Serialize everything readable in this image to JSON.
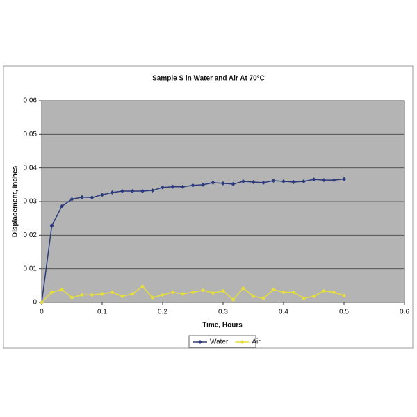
{
  "chart_data": {
    "type": "line",
    "title": "Sample S in Water and Air At 70°C",
    "x_label": "Time, Hours",
    "y_label": "Displacement, Inches",
    "x": [
      0,
      0.0167,
      0.0333,
      0.05,
      0.0667,
      0.0833,
      0.1,
      0.1167,
      0.1333,
      0.15,
      0.1667,
      0.1833,
      0.2,
      0.2167,
      0.2333,
      0.25,
      0.2667,
      0.2833,
      0.3,
      0.3167,
      0.3333,
      0.35,
      0.3667,
      0.3833,
      0.4,
      0.4167,
      0.4333,
      0.45,
      0.4667,
      0.4833,
      0.5
    ],
    "series": [
      {
        "name": "Water",
        "color": "#2b3a7c",
        "values": [
          0,
          0.0228,
          0.0286,
          0.0307,
          0.0313,
          0.0312,
          0.032,
          0.0327,
          0.0331,
          0.0331,
          0.0331,
          0.0333,
          0.0342,
          0.0344,
          0.0344,
          0.0348,
          0.035,
          0.0356,
          0.0354,
          0.0352,
          0.036,
          0.0358,
          0.0356,
          0.0362,
          0.036,
          0.0358,
          0.036,
          0.0366,
          0.0364,
          0.0364,
          0.0367
        ]
      },
      {
        "name": "Air",
        "color": "#e6de3c",
        "values": [
          0,
          0.003,
          0.0038,
          0.0014,
          0.0022,
          0.0022,
          0.0025,
          0.003,
          0.0018,
          0.0025,
          0.0047,
          0.0014,
          0.0022,
          0.003,
          0.0025,
          0.003,
          0.0036,
          0.0028,
          0.0034,
          0.0008,
          0.0042,
          0.0018,
          0.0012,
          0.0038,
          0.003,
          0.003,
          0.0012,
          0.0018,
          0.0034,
          0.003,
          0.002
        ]
      }
    ],
    "xlim": [
      0,
      0.6
    ],
    "xticks": [
      0,
      0.1,
      0.2,
      0.3,
      0.4,
      0.5,
      0.6
    ],
    "ylim": [
      0,
      0.06
    ],
    "yticks": [
      0,
      0.01,
      0.02,
      0.03,
      0.04,
      0.05,
      0.06
    ],
    "grid": true,
    "legend": "bottom",
    "plot_background": "#b4b4b4"
  }
}
